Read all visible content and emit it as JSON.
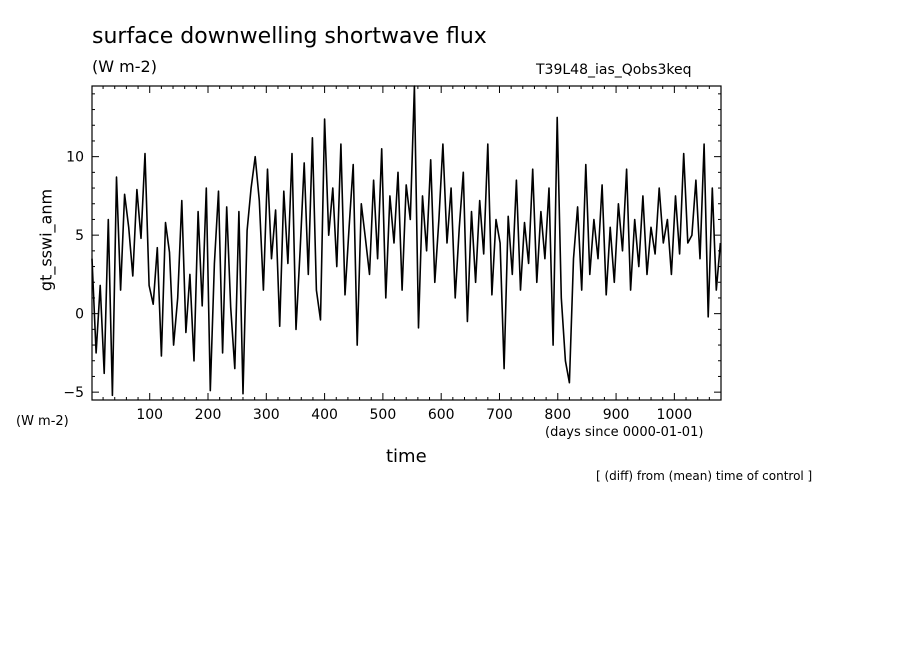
{
  "header": {
    "title": "surface downwelling shortwave flux",
    "units": "(W m-2)",
    "run": "T39L48_ias_Qobs3keq"
  },
  "footer": {
    "y_units": "(W m-2)",
    "x_units": "(days since 0000-01-01)",
    "x_label": "time",
    "note": "[ (diff) from (mean) time of control ]"
  },
  "chart_data": {
    "type": "line",
    "title": "surface downwelling shortwave flux",
    "ylabel": "gt_sswi_anm",
    "xlabel": "time",
    "xlim": [
      1,
      1080
    ],
    "ylim": [
      -5.5,
      14.5
    ],
    "x_ticks": [
      100,
      200,
      300,
      400,
      500,
      600,
      700,
      800,
      900,
      1000
    ],
    "y_ticks": [
      -5,
      0,
      5,
      10
    ],
    "grid": false,
    "series": [
      {
        "x": [
          1,
          8,
          15,
          22,
          29,
          36,
          43,
          50,
          57,
          64,
          71,
          78,
          85,
          92,
          99,
          106,
          113,
          120,
          127,
          134,
          141,
          148,
          155,
          162,
          169,
          176,
          183,
          190,
          197,
          204,
          211,
          218,
          225,
          232,
          239,
          246,
          253,
          260,
          267,
          274,
          281,
          288,
          295,
          302,
          309,
          316,
          323,
          330,
          337,
          344,
          351,
          358,
          365,
          372,
          379,
          386,
          393,
          400,
          407,
          414,
          421,
          428,
          435,
          442,
          449,
          456,
          463,
          470,
          477,
          484,
          491,
          498,
          505,
          512,
          519,
          526,
          533,
          540,
          547,
          554,
          561,
          568,
          575,
          582,
          589,
          596,
          603,
          610,
          617,
          624,
          631,
          638,
          645,
          652,
          659,
          666,
          673,
          680,
          687,
          694,
          701,
          708,
          715,
          722,
          729,
          736,
          743,
          750,
          757,
          764,
          771,
          778,
          785,
          792,
          799,
          806,
          813,
          820,
          827,
          834,
          841,
          848,
          855,
          862,
          869,
          876,
          883,
          890,
          897,
          904,
          911,
          918,
          925,
          932,
          939,
          946,
          953,
          960,
          967,
          974,
          981,
          988,
          995,
          1002,
          1009,
          1016,
          1023,
          1030,
          1037,
          1044,
          1051,
          1058,
          1065,
          1072,
          1079
        ],
        "values": [
          3.5,
          -2.5,
          1.8,
          -3.8,
          6.0,
          -5.2,
          8.7,
          1.5,
          7.6,
          5.5,
          2.4,
          7.9,
          4.8,
          10.2,
          1.8,
          0.6,
          4.2,
          -2.7,
          5.8,
          3.9,
          -2.0,
          1.0,
          7.2,
          -1.2,
          2.5,
          -3.0,
          6.5,
          0.5,
          8.0,
          -4.9,
          3.2,
          7.8,
          -2.5,
          6.8,
          0.4,
          -3.5,
          6.5,
          -5.1,
          5.3,
          8.0,
          10.0,
          7.2,
          1.5,
          9.2,
          3.5,
          6.6,
          -0.8,
          7.8,
          3.2,
          10.2,
          -1.0,
          4.0,
          9.6,
          2.5,
          11.2,
          1.5,
          -0.4,
          12.4,
          5.0,
          8.0,
          3.0,
          10.8,
          1.2,
          5.5,
          9.5,
          -2.0,
          7.0,
          4.8,
          2.5,
          8.5,
          3.5,
          10.5,
          1.0,
          7.5,
          4.5,
          9.0,
          1.5,
          8.2,
          6.0,
          14.5,
          -0.9,
          7.5,
          4.0,
          9.8,
          2.0,
          6.0,
          10.8,
          4.5,
          8.0,
          1.0,
          5.5,
          9.0,
          -0.5,
          6.5,
          2.0,
          7.2,
          3.8,
          10.8,
          1.2,
          6.0,
          4.5,
          -3.5,
          6.2,
          2.5,
          8.5,
          1.5,
          5.8,
          3.2,
          9.2,
          2.0,
          6.5,
          3.5,
          8.0,
          -2.0,
          12.5,
          1.0,
          -3.0,
          -4.4,
          3.5,
          6.8,
          1.5,
          9.5,
          2.5,
          6.0,
          3.5,
          8.2,
          1.2,
          5.5,
          2.0,
          7.0,
          4.0,
          9.2,
          1.5,
          6.0,
          3.0,
          7.5,
          2.5,
          5.5,
          3.8,
          8.0,
          4.5,
          6.0,
          2.5,
          7.5,
          3.8,
          10.2,
          4.5,
          5.0,
          8.5,
          3.5,
          10.8,
          -0.2,
          8.0,
          1.5,
          4.5
        ]
      }
    ]
  }
}
